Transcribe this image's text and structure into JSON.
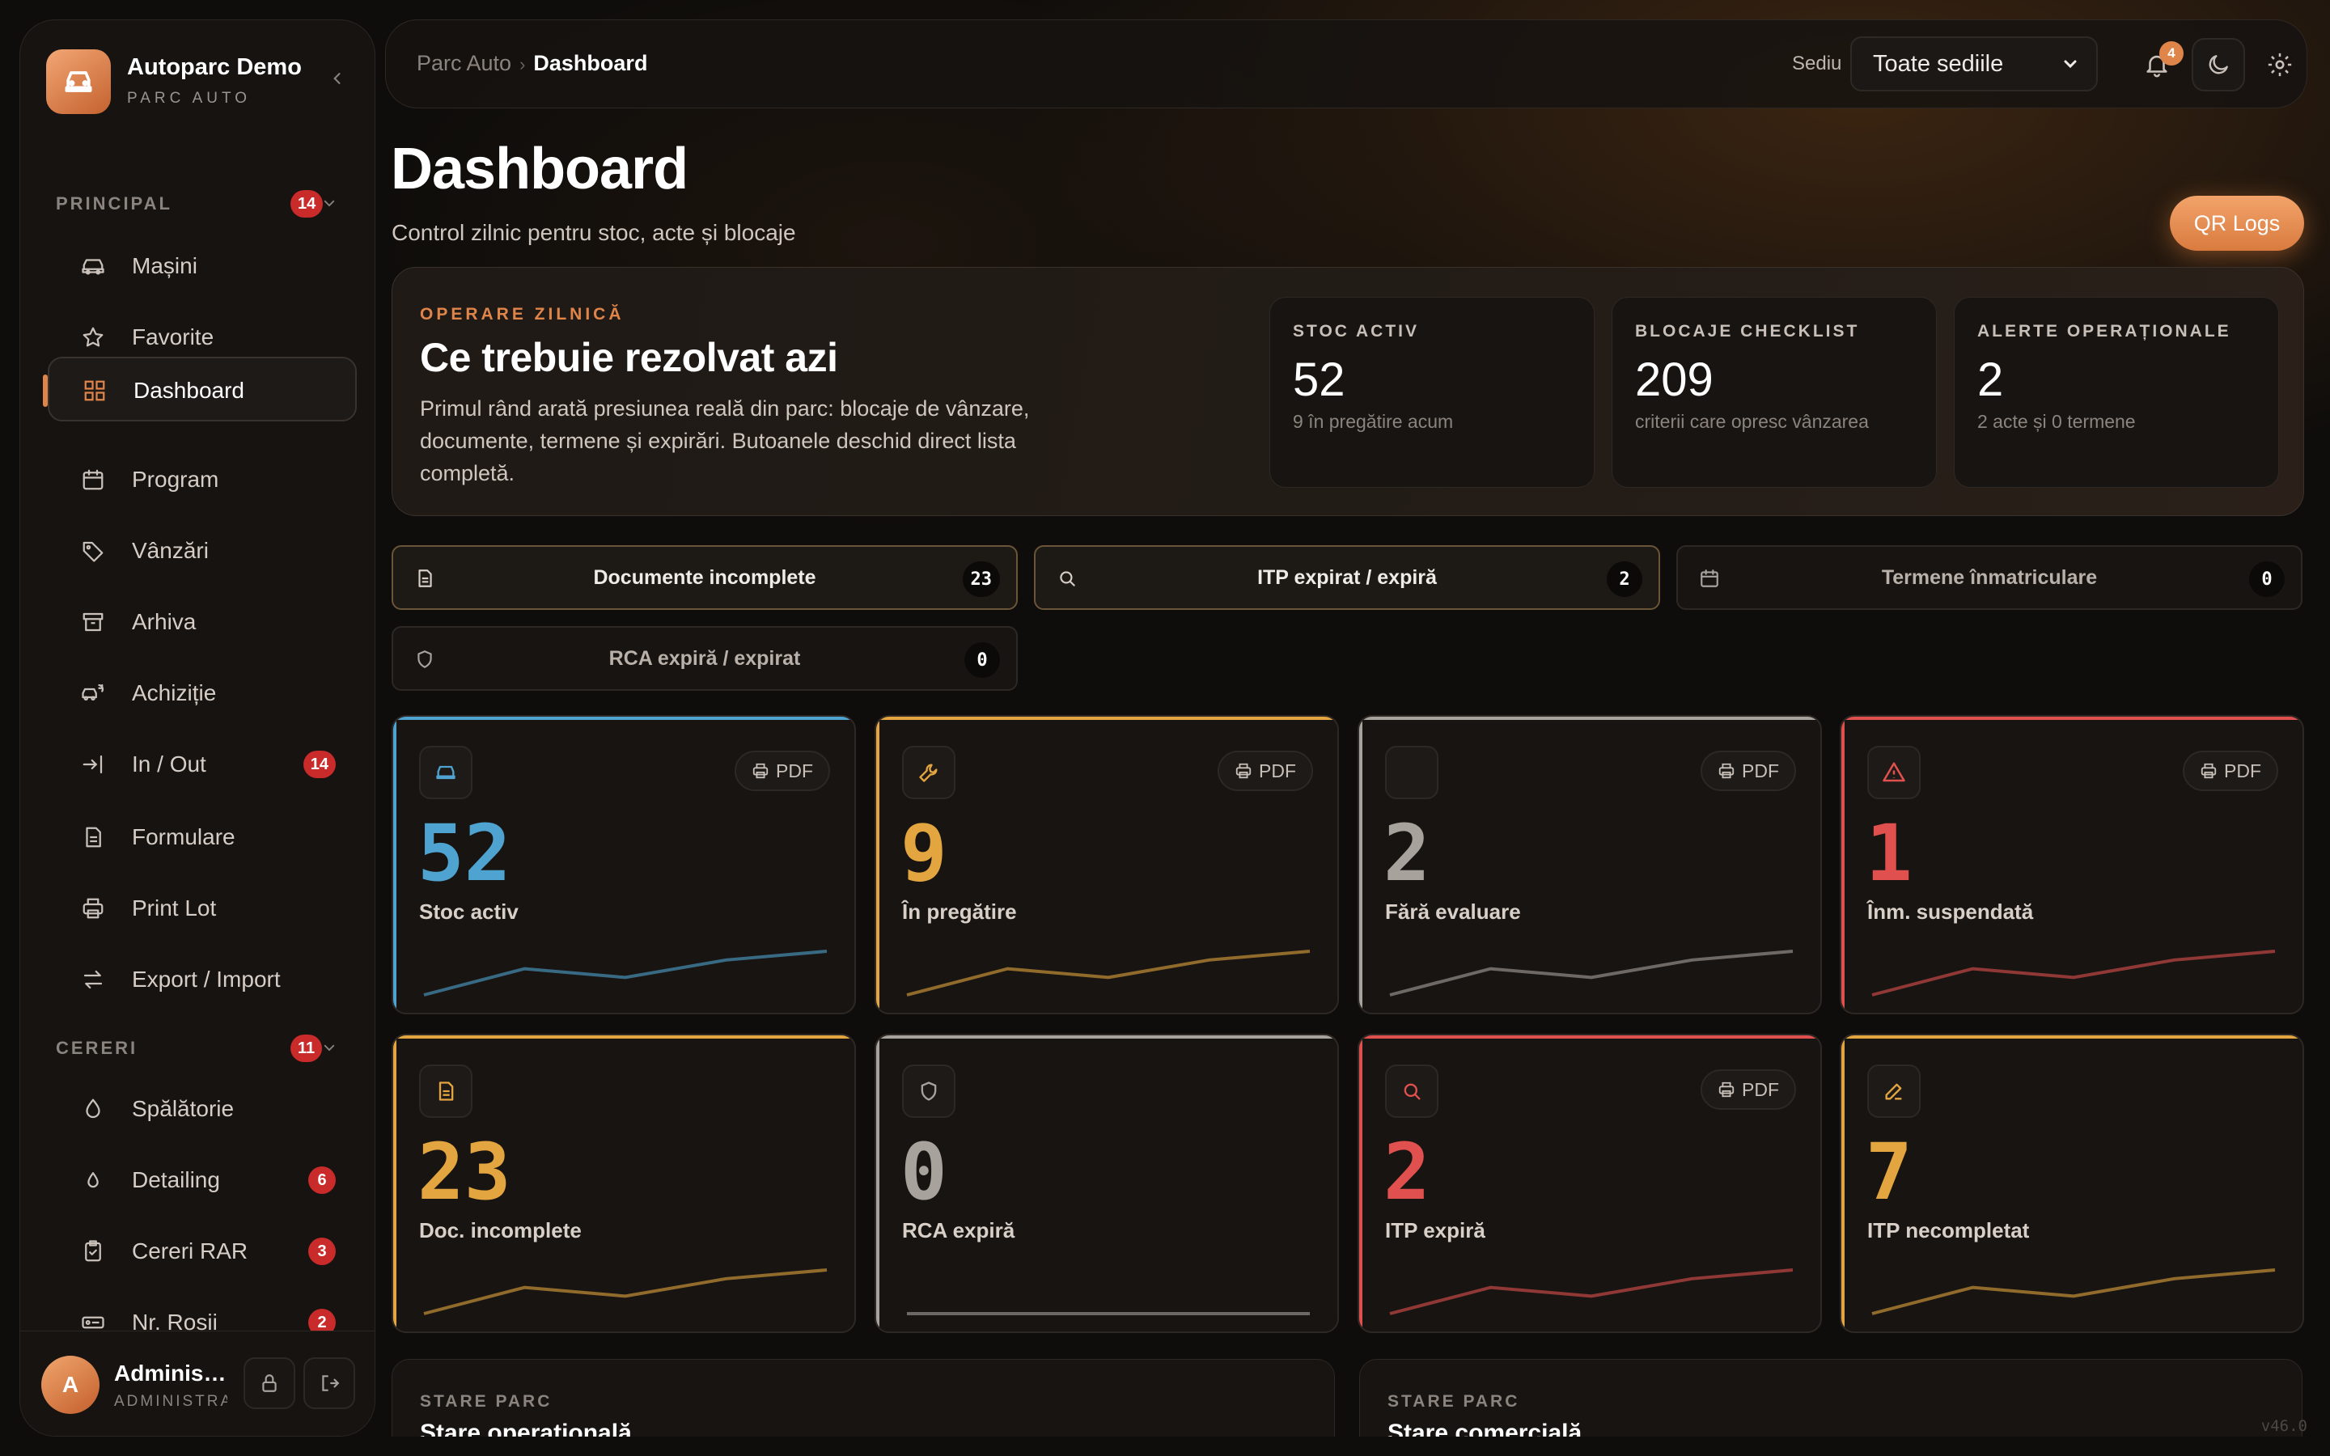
{
  "colors": {
    "accent": "#e0854a",
    "blue": "#4fa3d1",
    "amber": "#e3a53f",
    "gray": "#a8a29d",
    "red": "#e0504e",
    "badge_red": "#c92a2a"
  },
  "sidebar": {
    "brand": {
      "name": "Autoparc Demo",
      "subtitle": "PARC AUTO",
      "logo_icon": "car-icon"
    },
    "sections": [
      {
        "label": "PRINCIPAL",
        "count": "14"
      },
      {
        "label": "CERERI",
        "count": "11"
      }
    ],
    "items": [
      {
        "label": "Mașini",
        "icon": "car-icon"
      },
      {
        "label": "Favorite",
        "icon": "star-icon"
      },
      {
        "label": "Dashboard",
        "icon": "grid-icon",
        "active": true
      },
      {
        "label": "Program",
        "icon": "calendar-icon"
      },
      {
        "label": "Vânzări",
        "icon": "tag-icon"
      },
      {
        "label": "Arhiva",
        "icon": "archive-icon"
      },
      {
        "label": "Achiziție",
        "icon": "car-refresh-icon"
      },
      {
        "label": "In / Out",
        "icon": "arrow-in-icon",
        "badge": "14"
      },
      {
        "label": "Formulare",
        "icon": "document-icon"
      },
      {
        "label": "Print Lot",
        "icon": "printer-icon"
      },
      {
        "label": "Export / Import",
        "icon": "swap-icon"
      },
      {
        "label": "Spălătorie",
        "icon": "drop-icon"
      },
      {
        "label": "Detailing",
        "icon": "drop-icon",
        "badge": "6"
      },
      {
        "label": "Cereri RAR",
        "icon": "clipboard-icon",
        "badge": "3"
      },
      {
        "label": "Nr. Roșii",
        "icon": "plate-icon",
        "badge": "2"
      }
    ],
    "user": {
      "initial": "A",
      "name": "Administrator",
      "role": "ADMINISTRATOR"
    }
  },
  "topbar": {
    "breadcrumb": [
      "Parc Auto",
      "Dashboard"
    ],
    "sediu_label": "Sediu",
    "sediu_value": "Toate sediile",
    "notifications": "4"
  },
  "page": {
    "title": "Dashboard",
    "subtitle": "Control zilnic pentru stoc, acte și blocaje",
    "qr_button": "QR Logs"
  },
  "hero": {
    "kicker": "OPERARE ZILNICĂ",
    "title": "Ce trebuie rezolvat azi",
    "description": "Primul rând arată presiunea reală din parc: blocaje de vânzare, documente, termene și expirări. Butoanele deschid direct lista completă.",
    "stats": [
      {
        "label": "STOC ACTIV",
        "value": "52",
        "detail": "9 în pregătire acum"
      },
      {
        "label": "BLOCAJE CHECKLIST",
        "value": "209",
        "detail": "criterii care opresc vânzarea"
      },
      {
        "label": "ALERTE OPERAȚIONALE",
        "value": "2",
        "detail": "2 acte și 0 termene"
      }
    ]
  },
  "filters": [
    {
      "label": "Documente incomplete",
      "count": "23",
      "icon": "document-icon"
    },
    {
      "label": "ITP expirat / expiră",
      "count": "2",
      "icon": "search-icon"
    },
    {
      "label": "Termene înmatriculare",
      "count": "0",
      "icon": "calendar-icon"
    },
    {
      "label": "RCA expiră / expirat",
      "count": "0",
      "icon": "shield-icon"
    }
  ],
  "kpis": [
    {
      "value": "52",
      "label": "Stoc activ",
      "icon": "car-icon",
      "color": "#4fa3d1",
      "pdf": "PDF",
      "trend": [
        2,
        5,
        4,
        6,
        7
      ]
    },
    {
      "value": "9",
      "label": "În pregătire",
      "icon": "wrench-icon",
      "color": "#e3a53f",
      "pdf": "PDF",
      "trend": [
        2,
        5,
        4,
        6,
        7
      ]
    },
    {
      "value": "2",
      "label": "Fără evaluare",
      "icon": "",
      "color": "#a8a29d",
      "pdf": "PDF",
      "trend": [
        2,
        5,
        4,
        6,
        7
      ]
    },
    {
      "value": "1",
      "label": "Înm. suspendată",
      "icon": "alert-icon",
      "color": "#e0504e",
      "pdf": "PDF",
      "trend": [
        2,
        5,
        4,
        6,
        7
      ]
    },
    {
      "value": "23",
      "label": "Doc. incomplete",
      "icon": "document-icon",
      "color": "#e3a53f",
      "pdf": "",
      "trend": [
        2,
        5,
        4,
        6,
        7
      ]
    },
    {
      "value": "0",
      "label": "RCA expiră",
      "icon": "shield-icon",
      "color": "#a8a29d",
      "pdf": "",
      "trend": [
        0,
        0,
        0,
        0,
        0
      ]
    },
    {
      "value": "2",
      "label": "ITP expiră",
      "icon": "search-icon",
      "color": "#e0504e",
      "pdf": "PDF",
      "trend": [
        2,
        5,
        4,
        6,
        7
      ]
    },
    {
      "value": "7",
      "label": "ITP necompletat",
      "icon": "pencil-icon",
      "color": "#e3a53f",
      "pdf": "",
      "trend": [
        2,
        5,
        4,
        6,
        7
      ]
    }
  ],
  "panels": [
    {
      "kicker": "STARE PARC",
      "title": "Stare operațională"
    },
    {
      "kicker": "STARE PARC",
      "title": "Stare comercială"
    }
  ],
  "version": "v46.0"
}
